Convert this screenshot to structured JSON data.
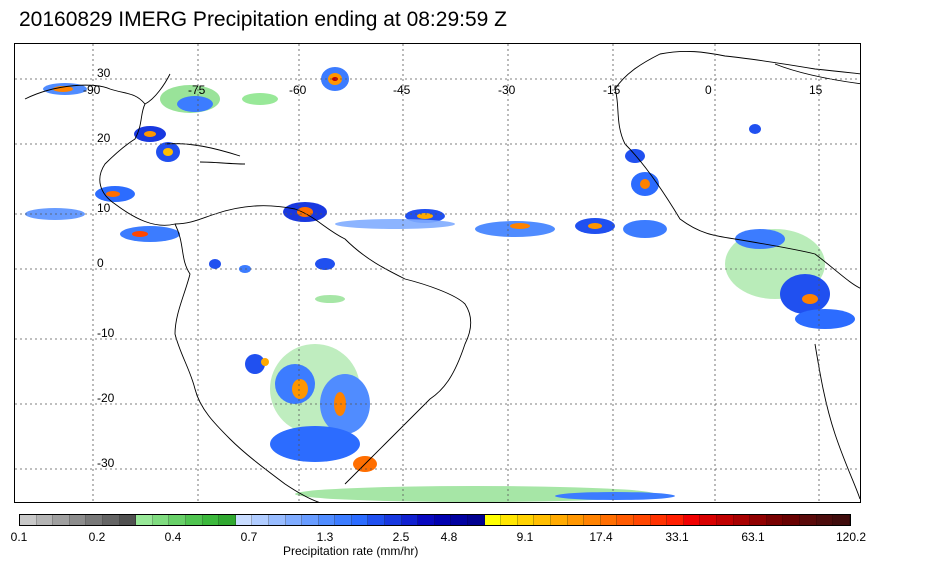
{
  "title": "20160829 IMERG Precipitation ending at 08:29:59 Z",
  "map": {
    "lon_labels": [
      "-90",
      "-75",
      "-60",
      "-45",
      "-30",
      "-15",
      "0",
      "15"
    ],
    "lat_labels": [
      "30",
      "20",
      "10",
      "0",
      "-10",
      "-20",
      "-30"
    ],
    "gridlines": true
  },
  "colorbar": {
    "colors": [
      "#c8c8c8",
      "#b4b4b4",
      "#a0a0a0",
      "#8c8c8c",
      "#787878",
      "#646464",
      "#505050",
      "#98e898",
      "#80dc80",
      "#68d068",
      "#50c450",
      "#3cb83c",
      "#30a830",
      "#c8dcff",
      "#b0ccff",
      "#98bcff",
      "#80acff",
      "#689cff",
      "#508cff",
      "#3c7cff",
      "#2c6cff",
      "#2050f0",
      "#1838e0",
      "#1020d0",
      "#0808c0",
      "#0000b0",
      "#0000a0",
      "#000090",
      "#ffff00",
      "#ffe600",
      "#ffd200",
      "#ffbe00",
      "#ffaa00",
      "#ff9600",
      "#ff8200",
      "#ff6e00",
      "#ff5a00",
      "#ff4600",
      "#ff3200",
      "#ff1e00",
      "#f00000",
      "#d80000",
      "#c00000",
      "#a80000",
      "#900000",
      "#780000",
      "#680000",
      "#5a0a0a",
      "#4c0c0c",
      "#400c0c"
    ],
    "labels": [
      "0.1",
      "0.2",
      "0.4",
      "0.7",
      "1.3",
      "2.5",
      "4.8",
      "9.1",
      "17.4",
      "33.1",
      "63.1",
      "120.2"
    ],
    "units": "Precipitation rate (mm/hr)"
  }
}
